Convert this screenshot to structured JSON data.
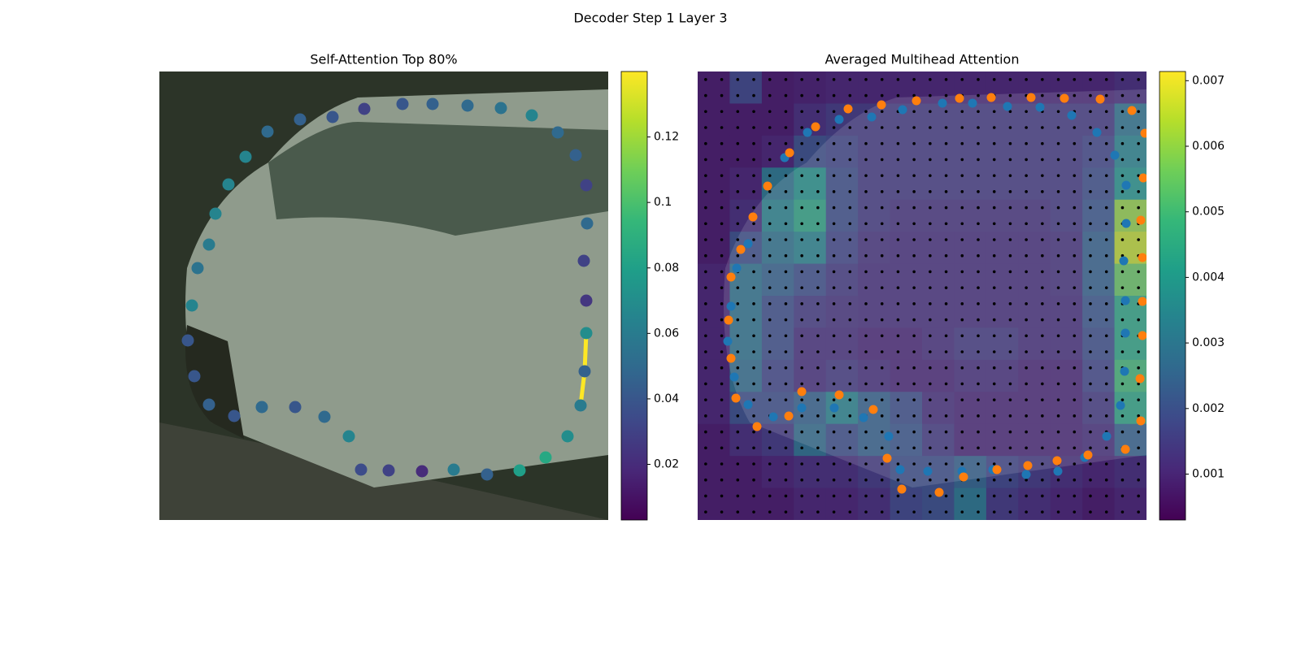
{
  "title": "Decoder Step 1 Layer 3",
  "chart_data": [
    {
      "type": "scatter",
      "title": "Self-Attention Top 80%",
      "cmap": "viridis",
      "x": [
        252,
        299,
        336,
        379,
        420,
        458,
        490,
        512,
        525,
        526,
        522,
        525,
        525,
        523,
        518,
        502,
        475,
        443,
        403,
        362,
        323,
        282,
        248,
        233,
        203,
        167,
        126,
        92,
        61,
        43,
        35,
        40,
        47,
        61,
        69,
        85,
        106,
        133,
        173,
        213
      ],
      "y": [
        46,
        40,
        40,
        42,
        45,
        54,
        75,
        103,
        140,
        187,
        233,
        282,
        322,
        369,
        411,
        449,
        475,
        491,
        496,
        490,
        492,
        491,
        490,
        449,
        425,
        413,
        413,
        424,
        410,
        375,
        331,
        288,
        242,
        213,
        175,
        139,
        105,
        74,
        59,
        56
      ],
      "values": [
        0.03,
        0.04,
        0.045,
        0.05,
        0.055,
        0.065,
        0.05,
        0.045,
        0.03,
        0.05,
        0.03,
        0.025,
        0.07,
        0.045,
        0.06,
        0.07,
        0.085,
        0.08,
        0.045,
        0.06,
        0.02,
        0.03,
        0.035,
        0.065,
        0.05,
        0.04,
        0.05,
        0.04,
        0.045,
        0.04,
        0.04,
        0.065,
        0.055,
        0.06,
        0.065,
        0.065,
        0.065,
        0.05,
        0.045,
        0.04
      ],
      "highlight": {
        "x": [
          525,
          523,
          518
        ],
        "y": [
          322,
          369,
          411
        ],
        "color": "#fde725"
      },
      "clim": [
        0.003,
        0.14
      ],
      "cticks": [
        0.02,
        0.04,
        0.06,
        0.08,
        0.1,
        0.12
      ]
    },
    {
      "type": "heatmap",
      "title": "Averaged Multihead Attention",
      "cmap": "viridis",
      "heatmap": [
        [
          0.0008,
          0.0018,
          0.0008,
          0.0009,
          0.001,
          0.001,
          0.001,
          0.001,
          0.001,
          0.001,
          0.001,
          0.001,
          0.001,
          0.0012
        ],
        [
          0.0008,
          0.0008,
          0.0008,
          0.0012,
          0.0015,
          0.0015,
          0.0015,
          0.0015,
          0.0015,
          0.0015,
          0.0015,
          0.0015,
          0.0015,
          0.003
        ],
        [
          0.0008,
          0.0008,
          0.001,
          0.002,
          0.0018,
          0.0015,
          0.0015,
          0.0015,
          0.0015,
          0.0015,
          0.0015,
          0.0015,
          0.0018,
          0.0035
        ],
        [
          0.0008,
          0.001,
          0.003,
          0.004,
          0.002,
          0.0015,
          0.0015,
          0.0015,
          0.0015,
          0.0015,
          0.0015,
          0.0015,
          0.002,
          0.004
        ],
        [
          0.0008,
          0.0012,
          0.0035,
          0.0045,
          0.002,
          0.0015,
          0.0013,
          0.0013,
          0.0013,
          0.0013,
          0.0013,
          0.0015,
          0.0022,
          0.006
        ],
        [
          0.0008,
          0.002,
          0.003,
          0.0035,
          0.0018,
          0.0013,
          0.0012,
          0.0012,
          0.0012,
          0.0012,
          0.0012,
          0.0013,
          0.0025,
          0.0065
        ],
        [
          0.001,
          0.003,
          0.0025,
          0.002,
          0.0015,
          0.0012,
          0.0012,
          0.0012,
          0.0012,
          0.0012,
          0.0012,
          0.0013,
          0.0025,
          0.0055
        ],
        [
          0.001,
          0.003,
          0.002,
          0.0015,
          0.0013,
          0.0012,
          0.0012,
          0.0012,
          0.0012,
          0.0012,
          0.0012,
          0.0012,
          0.0022,
          0.0045
        ],
        [
          0.001,
          0.003,
          0.002,
          0.0012,
          0.0012,
          0.001,
          0.001,
          0.0012,
          0.0015,
          0.0015,
          0.0012,
          0.0012,
          0.002,
          0.0045
        ],
        [
          0.001,
          0.0028,
          0.0018,
          0.0012,
          0.0015,
          0.0012,
          0.001,
          0.001,
          0.0012,
          0.0012,
          0.001,
          0.001,
          0.0018,
          0.005
        ],
        [
          0.001,
          0.002,
          0.002,
          0.0025,
          0.0035,
          0.0025,
          0.002,
          0.0012,
          0.001,
          0.001,
          0.001,
          0.001,
          0.0015,
          0.0045
        ],
        [
          0.0008,
          0.0012,
          0.0015,
          0.0028,
          0.002,
          0.0025,
          0.0022,
          0.0015,
          0.001,
          0.001,
          0.001,
          0.001,
          0.0012,
          0.0025
        ],
        [
          0.0008,
          0.0008,
          0.001,
          0.0012,
          0.0012,
          0.0015,
          0.002,
          0.002,
          0.0025,
          0.0018,
          0.0015,
          0.0012,
          0.001,
          0.0012
        ],
        [
          0.0008,
          0.0008,
          0.0008,
          0.001,
          0.001,
          0.0012,
          0.0018,
          0.002,
          0.003,
          0.0015,
          0.0012,
          0.001,
          0.0008,
          0.001
        ]
      ],
      "series": [
        {
          "color": "#1f77b4",
          "x": [
            135,
            107,
            62,
            48,
            41,
            37,
            45,
            62,
            93,
            128,
            168,
            204,
            235,
            249,
            283,
            325,
            363,
            404,
            443,
            476,
            503,
            520,
            525,
            526,
            526,
            524,
            527,
            527,
            513,
            491,
            460,
            421,
            381,
            338,
            301,
            252,
            214,
            174
          ],
          "y": [
            75,
            106,
            212,
            242,
            289,
            332,
            376,
            410,
            425,
            414,
            414,
            426,
            449,
            490,
            492,
            492,
            490,
            496,
            492,
            475,
            449,
            411,
            369,
            322,
            282,
            233,
            187,
            140,
            103,
            75,
            54,
            44,
            43,
            39,
            39,
            47,
            56,
            59
          ]
        },
        {
          "color": "#ff7f0e",
          "x": [
            145,
            113,
            86,
            68,
            53,
            41,
            38,
            41,
            47,
            73,
            112,
            128,
            174,
            216,
            233,
            251,
            297,
            327,
            368,
            406,
            442,
            480,
            526,
            545,
            544,
            547,
            547,
            547,
            545,
            548,
            550,
            534,
            495,
            451,
            410,
            361,
            322,
            269,
            226,
            185
          ],
          "y": [
            68,
            100,
            141,
            179,
            219,
            253,
            306,
            353,
            402,
            437,
            424,
            394,
            398,
            416,
            476,
            514,
            518,
            499,
            490,
            485,
            479,
            472,
            465,
            430,
            378,
            325,
            283,
            229,
            183,
            131,
            76,
            48,
            34,
            33,
            32,
            32,
            33,
            36,
            41,
            46
          ]
        }
      ],
      "clim": [
        0.0003,
        0.00714
      ],
      "cticks": [
        0.001,
        0.002,
        0.003,
        0.004,
        0.005,
        0.006,
        0.007
      ]
    }
  ]
}
